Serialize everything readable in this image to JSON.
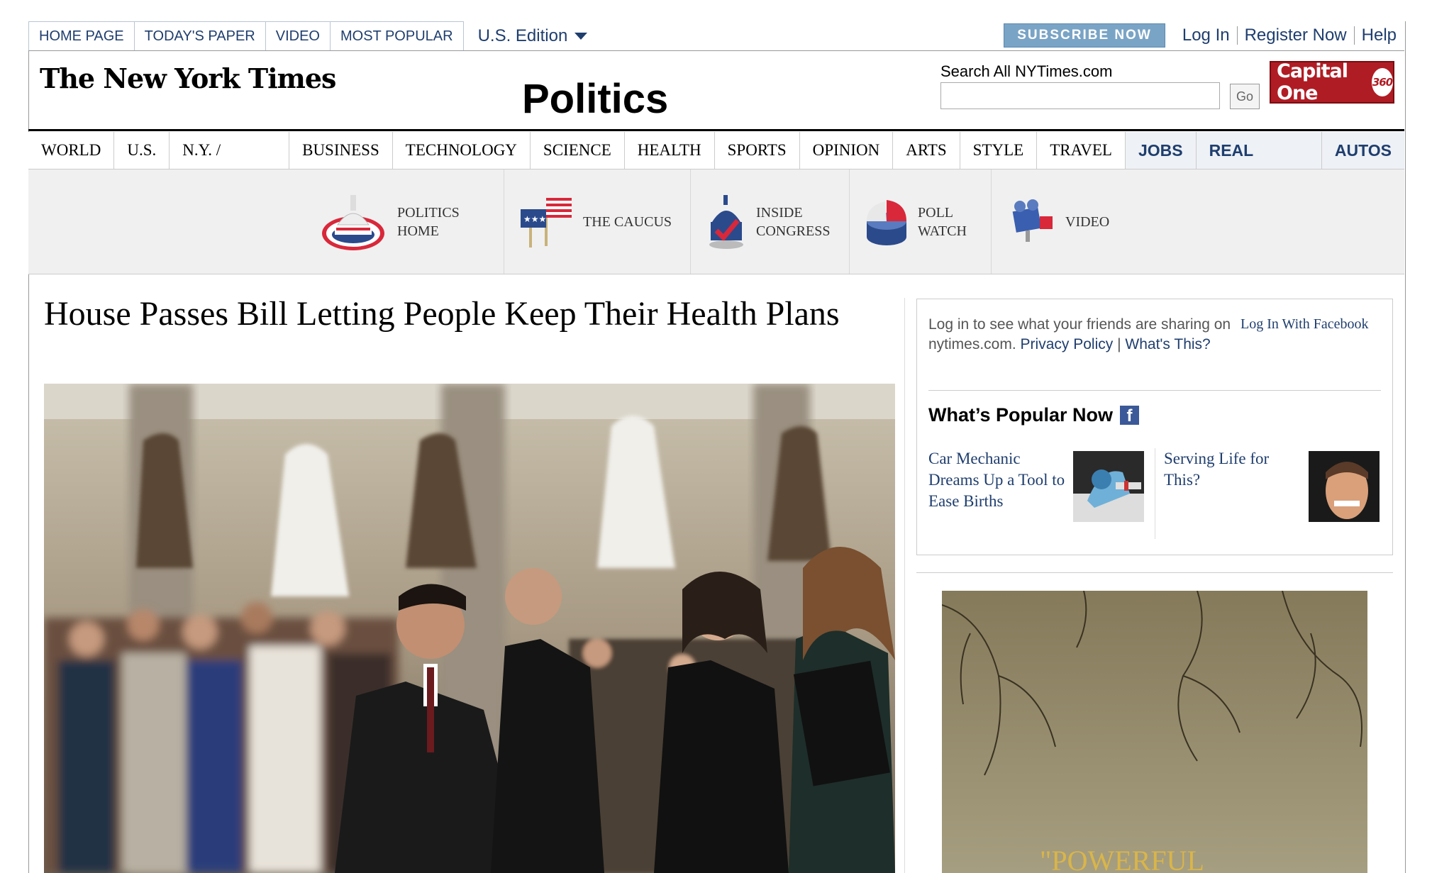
{
  "topnav": {
    "items": [
      "HOME PAGE",
      "TODAY'S PAPER",
      "VIDEO",
      "MOST POPULAR"
    ],
    "edition": "U.S. Edition"
  },
  "account": {
    "subscribe": "SUBSCRIBE NOW",
    "login": "Log In",
    "register": "Register Now",
    "help": "Help"
  },
  "masthead": {
    "logo": "The New York Times",
    "section": "Politics",
    "search_label": "Search All NYTimes.com",
    "search_value": "",
    "go": "Go",
    "ad_text": "Capital One",
    "ad_badge": "360"
  },
  "mainnav": {
    "serif_items": [
      "WORLD",
      "U.S.",
      "N.Y. / REGION",
      "BUSINESS",
      "TECHNOLOGY",
      "SCIENCE",
      "HEALTH",
      "SPORTS",
      "OPINION",
      "ARTS",
      "STYLE",
      "TRAVEL"
    ],
    "sans_items": [
      "JOBS",
      "REAL ESTATE",
      "AUTOS"
    ],
    "active": "U.S."
  },
  "subnav": {
    "items": [
      {
        "line1": "POLITICS",
        "line2": "HOME",
        "icon": "capitol-dome-icon"
      },
      {
        "line1": "THE CAUCUS",
        "line2": "",
        "icon": "flags-icon"
      },
      {
        "line1": "INSIDE",
        "line2": "CONGRESS",
        "icon": "congress-check-icon"
      },
      {
        "line1": "POLL",
        "line2": "WATCH",
        "icon": "poll-chart-icon"
      },
      {
        "line1": "VIDEO",
        "line2": "",
        "icon": "video-camera-icon"
      }
    ]
  },
  "article": {
    "headline": "House Passes Bill Letting People Keep Their Health Plans"
  },
  "social": {
    "text": "Log in to see what your friends are sharing on nytimes.com.",
    "privacy": "Privacy Policy",
    "separator": "|",
    "whats_this": "What's This?",
    "fb_login": "Log In With Facebook",
    "popular_title": "What’s Popular Now",
    "popular": [
      {
        "title": "Car Mechanic Dreams Up a Tool to Ease Births"
      },
      {
        "title": "Serving Life for This?"
      }
    ]
  },
  "ad": {
    "text": "\"POWERFUL"
  }
}
